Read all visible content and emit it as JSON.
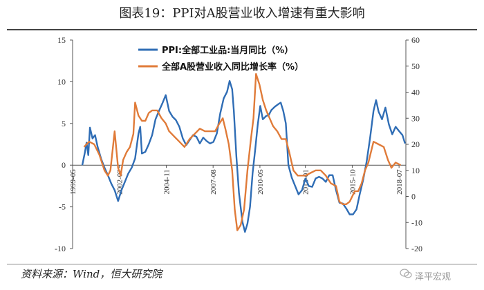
{
  "figure": {
    "title": "图表19：PPI对A股营业收入增速有重大影响",
    "source": "资料来源：Wind，恒大研究院",
    "watermark": "泽平宏观"
  },
  "colors": {
    "series_ppi": "#2F6DB5",
    "series_rev": "#E07B39",
    "axis": "#555555",
    "text": "#333333"
  },
  "chart_data": {
    "type": "line",
    "title": "PPI对A股营业收入增速有重大影响",
    "x_start": 1999.33,
    "x_end": 2018.9,
    "x_ticks": [
      {
        "label": "1999-05",
        "x": 1999.33
      },
      {
        "label": "2002-02",
        "x": 2002.08
      },
      {
        "label": "2004-11",
        "x": 2004.83
      },
      {
        "label": "2007-08",
        "x": 2007.58
      },
      {
        "label": "2010-05",
        "x": 2010.33
      },
      {
        "label": "2013-01",
        "x": 2013.0
      },
      {
        "label": "2015-10",
        "x": 2015.75
      },
      {
        "label": "2018-07",
        "x": 2018.5
      }
    ],
    "y_left": {
      "min": -10,
      "max": 15,
      "ticks": [
        -10,
        -5,
        0,
        5,
        10,
        15
      ]
    },
    "y_right": {
      "min": -20,
      "max": 60,
      "ticks": [
        -20,
        -10,
        0,
        10,
        20,
        30,
        40,
        50,
        60
      ]
    },
    "series": [
      {
        "name": "PPI:全部工业品:当月同比（%）",
        "axis": "left",
        "points": [
          [
            1999.9,
            0
          ],
          [
            2000.05,
            1.5
          ],
          [
            2000.15,
            2.7
          ],
          [
            2000.25,
            1.2
          ],
          [
            2000.35,
            4.5
          ],
          [
            2000.5,
            3.2
          ],
          [
            2000.65,
            3.6
          ],
          [
            2000.8,
            2.2
          ],
          [
            2001.0,
            0.8
          ],
          [
            2001.2,
            -0.3
          ],
          [
            2001.4,
            -1.2
          ],
          [
            2001.6,
            -2.2
          ],
          [
            2001.8,
            -3.0
          ],
          [
            2002.0,
            -4.3
          ],
          [
            2002.2,
            -3.0
          ],
          [
            2002.4,
            -2.0
          ],
          [
            2002.6,
            -1.0
          ],
          [
            2002.8,
            -0.3
          ],
          [
            2003.0,
            0.8
          ],
          [
            2003.2,
            3.8
          ],
          [
            2003.3,
            4.6
          ],
          [
            2003.4,
            1.4
          ],
          [
            2003.6,
            1.6
          ],
          [
            2003.8,
            2.5
          ],
          [
            2004.0,
            3.6
          ],
          [
            2004.2,
            5.5
          ],
          [
            2004.4,
            6.5
          ],
          [
            2004.6,
            7.4
          ],
          [
            2004.8,
            8.4
          ],
          [
            2005.0,
            6.5
          ],
          [
            2005.2,
            5.8
          ],
          [
            2005.4,
            5.4
          ],
          [
            2005.6,
            4.6
          ],
          [
            2005.8,
            3.2
          ],
          [
            2006.0,
            2.4
          ],
          [
            2006.2,
            3.0
          ],
          [
            2006.4,
            3.6
          ],
          [
            2006.6,
            3.4
          ],
          [
            2006.8,
            2.6
          ],
          [
            2007.0,
            3.3
          ],
          [
            2007.2,
            2.9
          ],
          [
            2007.4,
            2.6
          ],
          [
            2007.6,
            2.8
          ],
          [
            2007.8,
            3.8
          ],
          [
            2008.0,
            6.2
          ],
          [
            2008.2,
            8.0
          ],
          [
            2008.4,
            8.8
          ],
          [
            2008.55,
            10.1
          ],
          [
            2008.7,
            9.1
          ],
          [
            2008.8,
            6.5
          ],
          [
            2008.95,
            1.0
          ],
          [
            2009.1,
            -3.3
          ],
          [
            2009.3,
            -6.8
          ],
          [
            2009.45,
            -8.0
          ],
          [
            2009.6,
            -7.0
          ],
          [
            2009.75,
            -5.0
          ],
          [
            2009.9,
            -1.0
          ],
          [
            2010.05,
            1.8
          ],
          [
            2010.2,
            4.8
          ],
          [
            2010.35,
            7.1
          ],
          [
            2010.5,
            5.5
          ],
          [
            2010.7,
            5.9
          ],
          [
            2010.85,
            6.0
          ],
          [
            2011.0,
            6.6
          ],
          [
            2011.2,
            7.0
          ],
          [
            2011.4,
            7.3
          ],
          [
            2011.55,
            7.5
          ],
          [
            2011.7,
            6.5
          ],
          [
            2011.85,
            5.0
          ],
          [
            2012.0,
            0.0
          ],
          [
            2012.2,
            -1.5
          ],
          [
            2012.4,
            -2.5
          ],
          [
            2012.6,
            -3.5
          ],
          [
            2012.8,
            -3.0
          ],
          [
            2013.0,
            -1.6
          ],
          [
            2013.2,
            -2.5
          ],
          [
            2013.4,
            -2.6
          ],
          [
            2013.6,
            -1.6
          ],
          [
            2013.8,
            -1.4
          ],
          [
            2014.0,
            -1.6
          ],
          [
            2014.2,
            -2.0
          ],
          [
            2014.4,
            -1.2
          ],
          [
            2014.6,
            -1.2
          ],
          [
            2014.8,
            -3.0
          ],
          [
            2015.0,
            -4.5
          ],
          [
            2015.2,
            -4.6
          ],
          [
            2015.4,
            -5.2
          ],
          [
            2015.6,
            -5.9
          ],
          [
            2015.8,
            -5.9
          ],
          [
            2016.0,
            -5.3
          ],
          [
            2016.2,
            -3.4
          ],
          [
            2016.4,
            -1.7
          ],
          [
            2016.6,
            0.5
          ],
          [
            2016.8,
            3.3
          ],
          [
            2017.0,
            6.5
          ],
          [
            2017.15,
            7.8
          ],
          [
            2017.3,
            6.4
          ],
          [
            2017.5,
            5.5
          ],
          [
            2017.7,
            6.9
          ],
          [
            2017.9,
            4.9
          ],
          [
            2018.1,
            3.7
          ],
          [
            2018.3,
            4.6
          ],
          [
            2018.5,
            4.1
          ],
          [
            2018.7,
            3.6
          ],
          [
            2018.85,
            2.6
          ]
        ]
      },
      {
        "name": "全部A股营业收入同比增长率（%）",
        "axis": "right",
        "points": [
          [
            2000.0,
            19
          ],
          [
            2000.3,
            21
          ],
          [
            2000.6,
            20
          ],
          [
            2000.9,
            16
          ],
          [
            2001.2,
            10
          ],
          [
            2001.4,
            8
          ],
          [
            2001.55,
            10
          ],
          [
            2001.8,
            25
          ],
          [
            2002.0,
            11
          ],
          [
            2002.15,
            8
          ],
          [
            2002.3,
            14
          ],
          [
            2002.5,
            17
          ],
          [
            2002.7,
            19
          ],
          [
            2002.9,
            24
          ],
          [
            2003.0,
            36
          ],
          [
            2003.2,
            31
          ],
          [
            2003.4,
            29
          ],
          [
            2003.6,
            29
          ],
          [
            2003.8,
            32
          ],
          [
            2004.0,
            33
          ],
          [
            2004.3,
            33
          ],
          [
            2004.55,
            30
          ],
          [
            2004.8,
            28
          ],
          [
            2005.0,
            25
          ],
          [
            2005.3,
            23
          ],
          [
            2005.6,
            21
          ],
          [
            2005.9,
            19
          ],
          [
            2006.2,
            22
          ],
          [
            2006.5,
            24
          ],
          [
            2006.8,
            26
          ],
          [
            2007.1,
            25
          ],
          [
            2007.4,
            25
          ],
          [
            2007.7,
            25
          ],
          [
            2007.95,
            28
          ],
          [
            2008.15,
            30
          ],
          [
            2008.3,
            26
          ],
          [
            2008.5,
            20
          ],
          [
            2008.7,
            10
          ],
          [
            2008.85,
            -5
          ],
          [
            2009.0,
            -13
          ],
          [
            2009.2,
            -11
          ],
          [
            2009.4,
            -5
          ],
          [
            2009.6,
            10
          ],
          [
            2009.8,
            22
          ],
          [
            2009.95,
            30
          ],
          [
            2010.1,
            47
          ],
          [
            2010.3,
            43
          ],
          [
            2010.5,
            37
          ],
          [
            2010.7,
            33
          ],
          [
            2010.9,
            30
          ],
          [
            2011.1,
            27
          ],
          [
            2011.35,
            25
          ],
          [
            2011.6,
            22
          ],
          [
            2011.85,
            22
          ],
          [
            2012.05,
            17
          ],
          [
            2012.3,
            10
          ],
          [
            2012.55,
            8
          ],
          [
            2012.8,
            8
          ],
          [
            2013.0,
            8
          ],
          [
            2013.3,
            9
          ],
          [
            2013.6,
            10
          ],
          [
            2013.9,
            10
          ],
          [
            2014.2,
            8
          ],
          [
            2014.5,
            5
          ],
          [
            2014.8,
            4
          ],
          [
            2015.0,
            -2
          ],
          [
            2015.2,
            -3
          ],
          [
            2015.4,
            -3
          ],
          [
            2015.6,
            -2
          ],
          [
            2015.9,
            2
          ],
          [
            2016.1,
            2
          ],
          [
            2016.3,
            5
          ],
          [
            2016.5,
            10
          ],
          [
            2016.7,
            13
          ],
          [
            2017.0,
            21
          ],
          [
            2017.3,
            20
          ],
          [
            2017.6,
            19
          ],
          [
            2017.85,
            14
          ],
          [
            2018.05,
            11
          ],
          [
            2018.3,
            13
          ],
          [
            2018.6,
            12
          ]
        ]
      }
    ]
  }
}
